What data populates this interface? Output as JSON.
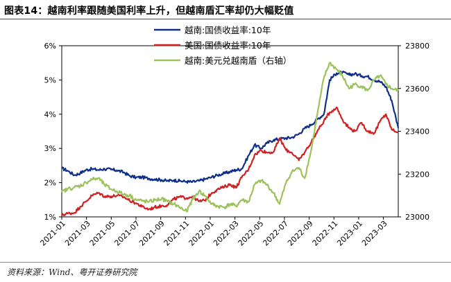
{
  "title": "图表14：越南利率跟随美国利率上升，但越南盾汇率却仍大幅贬值",
  "source": "资料来源：Wind、粤开证券研究院",
  "colors": {
    "vn_yield": "#0d2f8a",
    "us_yield": "#d21f1f",
    "usd_vnd": "#9cc25a",
    "title_rule": "#a01f1f"
  },
  "chart_data": {
    "type": "line",
    "title": "",
    "legend_position": "top-center",
    "grid": false,
    "x_ticks": [
      "2021-01",
      "2021-03",
      "2021-05",
      "2021-07",
      "2021-09",
      "2021-11",
      "2022-01",
      "2022-03",
      "2022-05",
      "2022-07",
      "2022-09",
      "2022-11",
      "2023-01",
      "2023-03"
    ],
    "y_left": {
      "ticks": [
        "1%",
        "2%",
        "3%",
        "4%",
        "5%",
        "6%"
      ],
      "range": [
        1,
        6
      ],
      "unit": "%"
    },
    "y_right": {
      "ticks": [
        "23000",
        "23200",
        "23400",
        "23600",
        "23800"
      ],
      "range": [
        23000,
        23800
      ]
    },
    "series": [
      {
        "name": "越南:国债收益率:10年",
        "axis": "left",
        "color_key": "vn_yield",
        "points": [
          [
            "2021-01-01",
            2.42
          ],
          [
            "2021-01-15",
            2.35
          ],
          [
            "2021-02-01",
            2.22
          ],
          [
            "2021-02-15",
            2.28
          ],
          [
            "2021-03-01",
            2.37
          ],
          [
            "2021-03-15",
            2.4
          ],
          [
            "2021-04-01",
            2.37
          ],
          [
            "2021-04-15",
            2.4
          ],
          [
            "2021-05-01",
            2.38
          ],
          [
            "2021-05-15",
            2.36
          ],
          [
            "2021-06-01",
            2.3
          ],
          [
            "2021-06-15",
            2.2
          ],
          [
            "2021-07-01",
            2.15
          ],
          [
            "2021-07-15",
            2.16
          ],
          [
            "2021-08-01",
            2.12
          ],
          [
            "2021-08-15",
            2.1
          ],
          [
            "2021-09-01",
            2.08
          ],
          [
            "2021-09-15",
            2.05
          ],
          [
            "2021-10-01",
            2.07
          ],
          [
            "2021-10-15",
            2.05
          ],
          [
            "2021-11-01",
            2.03
          ],
          [
            "2021-11-15",
            2.02
          ],
          [
            "2021-12-01",
            2.05
          ],
          [
            "2021-12-15",
            2.1
          ],
          [
            "2022-01-01",
            2.16
          ],
          [
            "2022-01-15",
            2.22
          ],
          [
            "2022-02-01",
            2.27
          ],
          [
            "2022-02-15",
            2.32
          ],
          [
            "2022-03-01",
            2.37
          ],
          [
            "2022-03-15",
            2.4
          ],
          [
            "2022-04-01",
            2.8
          ],
          [
            "2022-04-15",
            3.1
          ],
          [
            "2022-05-01",
            3.0
          ],
          [
            "2022-05-15",
            3.15
          ],
          [
            "2022-06-01",
            3.25
          ],
          [
            "2022-06-15",
            3.28
          ],
          [
            "2022-07-01",
            3.3
          ],
          [
            "2022-07-15",
            3.32
          ],
          [
            "2022-08-01",
            3.42
          ],
          [
            "2022-08-15",
            3.58
          ],
          [
            "2022-09-01",
            3.7
          ],
          [
            "2022-09-15",
            3.85
          ],
          [
            "2022-10-01",
            4.0
          ],
          [
            "2022-10-15",
            5.0
          ],
          [
            "2022-11-01",
            5.2
          ],
          [
            "2022-11-15",
            5.22
          ],
          [
            "2022-12-01",
            5.15
          ],
          [
            "2022-12-15",
            5.18
          ],
          [
            "2023-01-01",
            5.12
          ],
          [
            "2023-01-15",
            5.1
          ],
          [
            "2023-02-01",
            5.0
          ],
          [
            "2023-02-15",
            4.95
          ],
          [
            "2023-03-01",
            4.8
          ],
          [
            "2023-03-15",
            4.4
          ],
          [
            "2023-03-31",
            3.6
          ]
        ]
      },
      {
        "name": "美国:国债收益率:10年",
        "axis": "left",
        "color_key": "us_yield",
        "points": [
          [
            "2021-01-01",
            1.05
          ],
          [
            "2021-01-15",
            1.1
          ],
          [
            "2021-02-01",
            1.12
          ],
          [
            "2021-02-15",
            1.3
          ],
          [
            "2021-03-01",
            1.45
          ],
          [
            "2021-03-15",
            1.62
          ],
          [
            "2021-04-01",
            1.7
          ],
          [
            "2021-04-15",
            1.6
          ],
          [
            "2021-05-01",
            1.6
          ],
          [
            "2021-05-15",
            1.62
          ],
          [
            "2021-06-01",
            1.58
          ],
          [
            "2021-06-15",
            1.48
          ],
          [
            "2021-07-01",
            1.4
          ],
          [
            "2021-07-15",
            1.3
          ],
          [
            "2021-08-01",
            1.22
          ],
          [
            "2021-08-15",
            1.28
          ],
          [
            "2021-09-01",
            1.32
          ],
          [
            "2021-09-15",
            1.35
          ],
          [
            "2021-10-01",
            1.52
          ],
          [
            "2021-10-15",
            1.58
          ],
          [
            "2021-11-01",
            1.55
          ],
          [
            "2021-11-15",
            1.6
          ],
          [
            "2021-12-01",
            1.45
          ],
          [
            "2021-12-15",
            1.48
          ],
          [
            "2022-01-01",
            1.7
          ],
          [
            "2022-01-15",
            1.8
          ],
          [
            "2022-02-01",
            1.88
          ],
          [
            "2022-02-15",
            1.95
          ],
          [
            "2022-03-01",
            1.85
          ],
          [
            "2022-03-15",
            2.15
          ],
          [
            "2022-04-01",
            2.4
          ],
          [
            "2022-04-15",
            2.8
          ],
          [
            "2022-05-01",
            2.95
          ],
          [
            "2022-05-15",
            2.88
          ],
          [
            "2022-06-01",
            2.9
          ],
          [
            "2022-06-15",
            3.3
          ],
          [
            "2022-07-01",
            2.95
          ],
          [
            "2022-07-15",
            2.88
          ],
          [
            "2022-08-01",
            2.65
          ],
          [
            "2022-08-15",
            2.88
          ],
          [
            "2022-09-01",
            3.2
          ],
          [
            "2022-09-15",
            3.5
          ],
          [
            "2022-10-01",
            3.8
          ],
          [
            "2022-10-15",
            4.05
          ],
          [
            "2022-11-01",
            4.2
          ],
          [
            "2022-11-15",
            3.85
          ],
          [
            "2022-12-01",
            3.6
          ],
          [
            "2022-12-15",
            3.5
          ],
          [
            "2023-01-01",
            3.75
          ],
          [
            "2023-01-15",
            3.5
          ],
          [
            "2023-02-01",
            3.45
          ],
          [
            "2023-02-15",
            3.8
          ],
          [
            "2023-03-01",
            4.0
          ],
          [
            "2023-03-15",
            3.55
          ],
          [
            "2023-03-31",
            3.48
          ]
        ]
      },
      {
        "name": "越南:美元兑越南盾（右轴）",
        "axis": "right",
        "color_key": "usd_vnd",
        "points": [
          [
            "2021-01-01",
            23115
          ],
          [
            "2021-01-15",
            23130
          ],
          [
            "2021-02-01",
            23138
          ],
          [
            "2021-02-15",
            23145
          ],
          [
            "2021-03-01",
            23160
          ],
          [
            "2021-03-15",
            23175
          ],
          [
            "2021-04-01",
            23180
          ],
          [
            "2021-04-15",
            23150
          ],
          [
            "2021-05-01",
            23130
          ],
          [
            "2021-05-15",
            23120
          ],
          [
            "2021-06-01",
            23105
          ],
          [
            "2021-06-15",
            23100
          ],
          [
            "2021-07-01",
            23080
          ],
          [
            "2021-07-15",
            23075
          ],
          [
            "2021-08-01",
            23070
          ],
          [
            "2021-08-15",
            23078
          ],
          [
            "2021-09-01",
            23085
          ],
          [
            "2021-09-15",
            23072
          ],
          [
            "2021-10-01",
            23060
          ],
          [
            "2021-10-15",
            23045
          ],
          [
            "2021-11-01",
            23025
          ],
          [
            "2021-11-15",
            23080
          ],
          [
            "2021-12-01",
            23120
          ],
          [
            "2021-12-15",
            23100
          ],
          [
            "2022-01-01",
            23060
          ],
          [
            "2022-01-15",
            23050
          ],
          [
            "2022-02-01",
            23045
          ],
          [
            "2022-02-15",
            23060
          ],
          [
            "2022-03-01",
            23050
          ],
          [
            "2022-03-15",
            23080
          ],
          [
            "2022-04-01",
            23070
          ],
          [
            "2022-04-15",
            23150
          ],
          [
            "2022-05-01",
            23170
          ],
          [
            "2022-05-15",
            23150
          ],
          [
            "2022-06-01",
            23110
          ],
          [
            "2022-06-15",
            23060
          ],
          [
            "2022-07-01",
            23160
          ],
          [
            "2022-07-15",
            23210
          ],
          [
            "2022-08-01",
            23230
          ],
          [
            "2022-08-15",
            23180
          ],
          [
            "2022-09-01",
            23320
          ],
          [
            "2022-09-15",
            23480
          ],
          [
            "2022-10-01",
            23650
          ],
          [
            "2022-10-15",
            23720
          ],
          [
            "2022-11-01",
            23690
          ],
          [
            "2022-11-15",
            23660
          ],
          [
            "2022-12-01",
            23600
          ],
          [
            "2022-12-15",
            23620
          ],
          [
            "2023-01-01",
            23610
          ],
          [
            "2023-01-15",
            23590
          ],
          [
            "2023-02-01",
            23640
          ],
          [
            "2023-02-15",
            23660
          ],
          [
            "2023-03-01",
            23620
          ],
          [
            "2023-03-15",
            23600
          ],
          [
            "2023-03-31",
            23590
          ]
        ]
      }
    ]
  }
}
